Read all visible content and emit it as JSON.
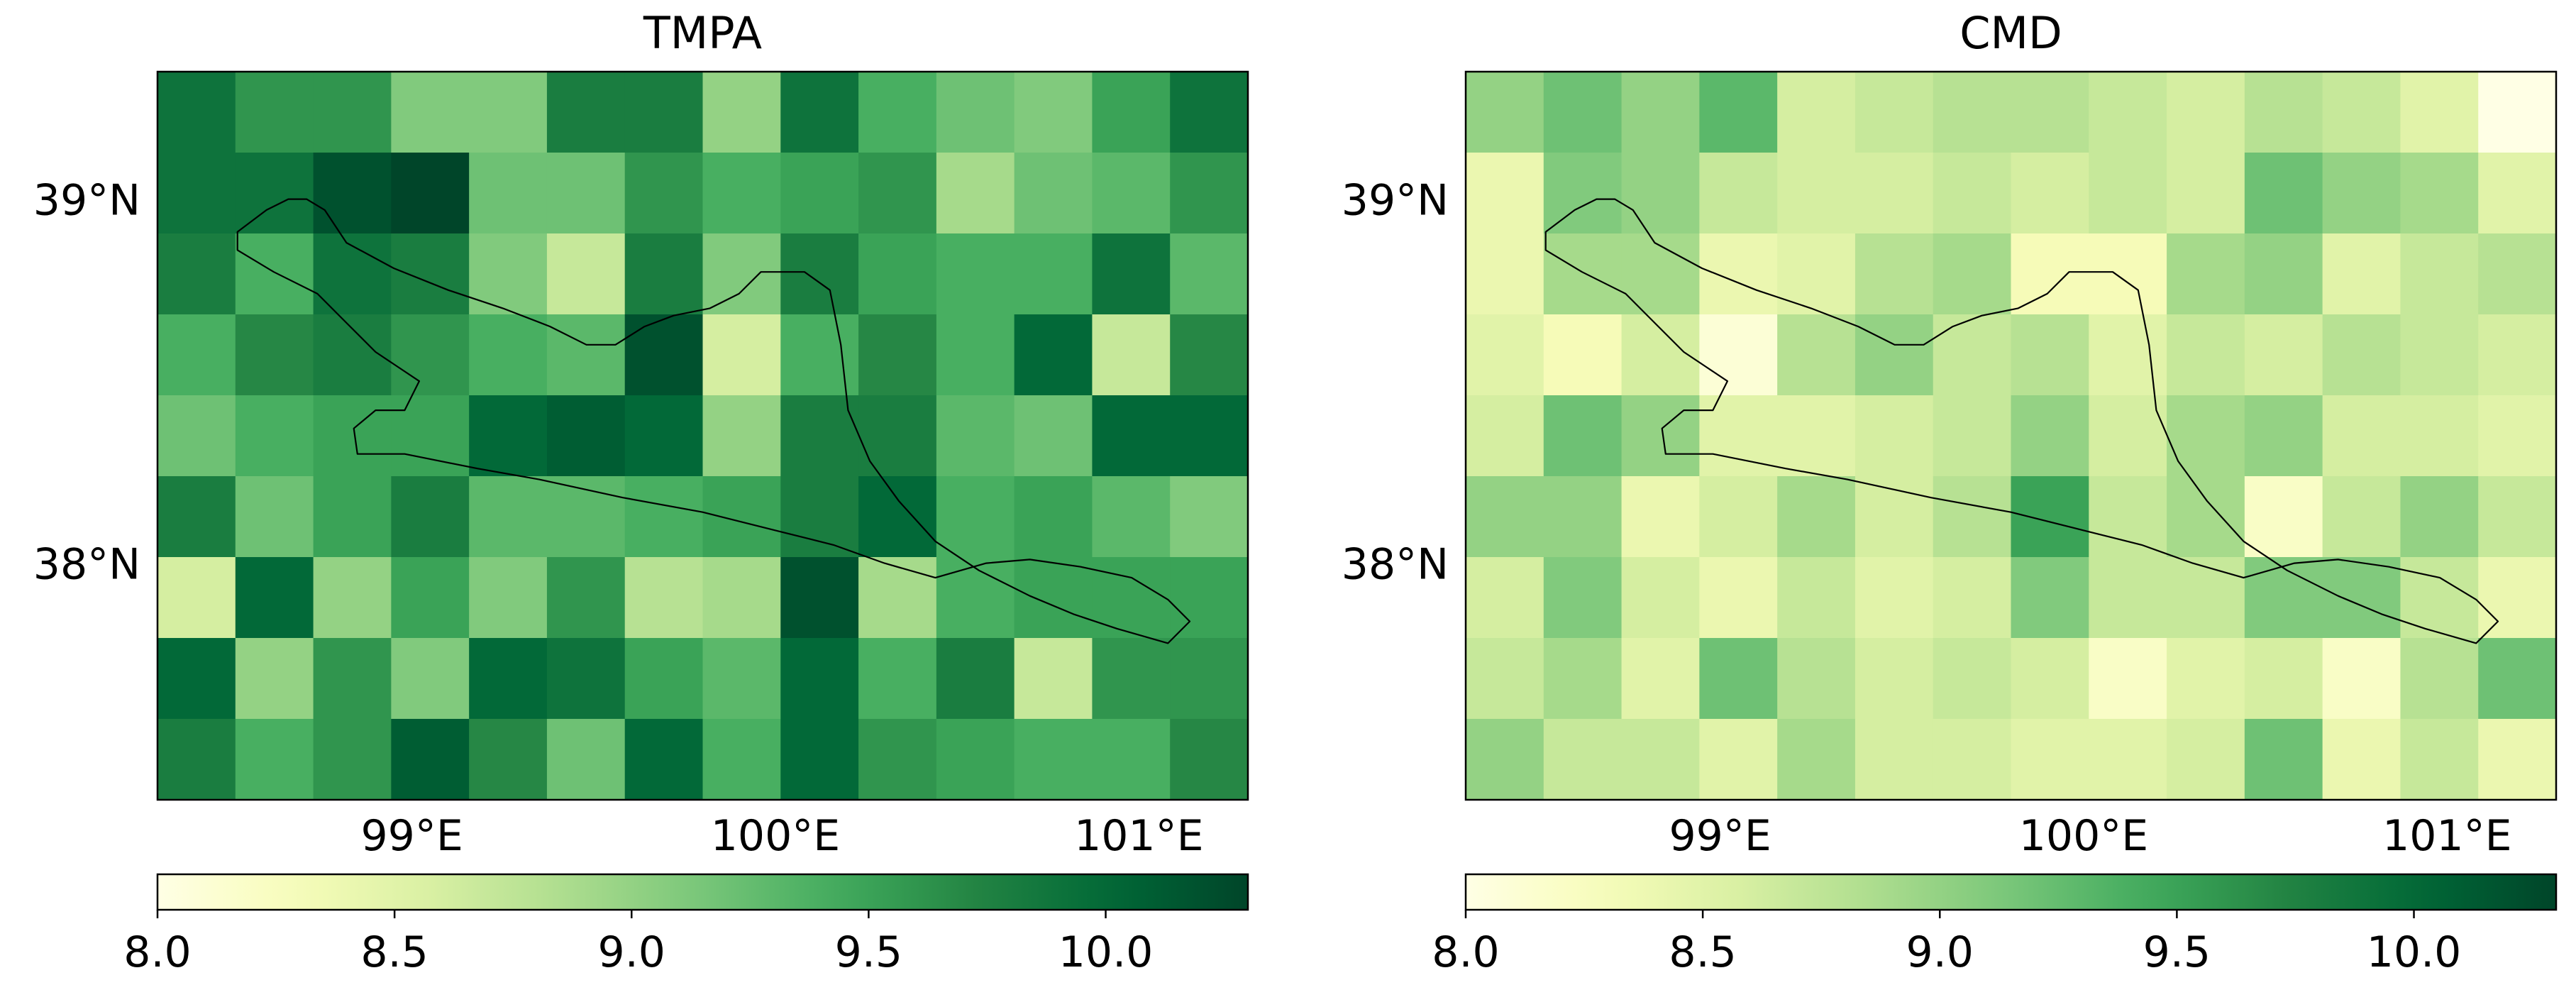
{
  "chart_data": [
    {
      "type": "heatmap",
      "title": "TMPA",
      "xlabel": "",
      "ylabel": "",
      "x_ticks": [
        "99°E",
        "100°E",
        "101°E"
      ],
      "y_ticks": [
        "39°N",
        "38°N"
      ],
      "colorbar": {
        "ticks": [
          "8.0",
          "8.5",
          "9.0",
          "9.5",
          "10.0"
        ],
        "min": 8.0,
        "max": 10.3
      },
      "colormap": "YlGn",
      "grid": [
        [
          9.9,
          9.6,
          9.6,
          9.1,
          9.1,
          9.8,
          9.8,
          9.0,
          9.9,
          9.4,
          9.2,
          9.1,
          9.5,
          9.9
        ],
        [
          9.9,
          9.9,
          10.2,
          10.3,
          9.2,
          9.2,
          9.6,
          9.4,
          9.5,
          9.6,
          8.9,
          9.2,
          9.3,
          9.6
        ],
        [
          9.8,
          9.4,
          9.9,
          9.8,
          9.1,
          8.7,
          9.8,
          9.1,
          9.8,
          9.5,
          9.4,
          9.4,
          9.9,
          9.3
        ],
        [
          9.4,
          9.7,
          9.8,
          9.6,
          9.4,
          9.3,
          10.2,
          8.6,
          9.4,
          9.7,
          9.4,
          10.0,
          8.7,
          9.7
        ],
        [
          9.2,
          9.4,
          9.5,
          9.5,
          10.0,
          10.1,
          10.0,
          9.0,
          9.8,
          9.8,
          9.3,
          9.2,
          10.0,
          10.0
        ],
        [
          9.8,
          9.2,
          9.5,
          9.8,
          9.3,
          9.3,
          9.4,
          9.5,
          9.8,
          10.0,
          9.4,
          9.5,
          9.3,
          9.1
        ],
        [
          8.6,
          10.0,
          9.0,
          9.5,
          9.1,
          9.6,
          8.8,
          8.9,
          10.2,
          8.9,
          9.4,
          9.5,
          9.5,
          9.5
        ],
        [
          10.0,
          9.0,
          9.6,
          9.1,
          10.0,
          9.9,
          9.5,
          9.3,
          10.0,
          9.4,
          9.8,
          8.7,
          9.6,
          9.6
        ],
        [
          9.8,
          9.4,
          9.6,
          10.1,
          9.7,
          9.2,
          10.0,
          9.4,
          10.0,
          9.6,
          9.5,
          9.4,
          9.4,
          9.7
        ]
      ]
    },
    {
      "type": "heatmap",
      "title": "CMD",
      "xlabel": "",
      "ylabel": "",
      "x_ticks": [
        "99°E",
        "100°E",
        "101°E"
      ],
      "y_ticks": [
        "39°N",
        "38°N"
      ],
      "colorbar": {
        "ticks": [
          "8.0",
          "8.5",
          "9.0",
          "9.5",
          "10.0"
        ],
        "min": 8.0,
        "max": 10.3
      },
      "colormap": "YlGn",
      "grid": [
        [
          9.0,
          9.2,
          9.0,
          9.3,
          8.6,
          8.7,
          8.8,
          8.8,
          8.7,
          8.6,
          8.8,
          8.7,
          8.5,
          8.0
        ],
        [
          8.4,
          9.1,
          9.0,
          8.7,
          8.6,
          8.6,
          8.7,
          8.6,
          8.7,
          8.6,
          9.2,
          9.0,
          8.9,
          8.5
        ],
        [
          8.4,
          8.9,
          8.9,
          8.4,
          8.5,
          8.8,
          8.9,
          8.3,
          8.3,
          8.9,
          9.0,
          8.5,
          8.7,
          8.8
        ],
        [
          8.5,
          8.3,
          8.6,
          8.1,
          8.8,
          9.0,
          8.7,
          8.8,
          8.5,
          8.7,
          8.6,
          8.8,
          8.7,
          8.6
        ],
        [
          8.6,
          9.2,
          9.0,
          8.5,
          8.5,
          8.6,
          8.7,
          9.0,
          8.6,
          8.9,
          9.0,
          8.6,
          8.6,
          8.5
        ],
        [
          9.0,
          9.0,
          8.4,
          8.6,
          8.9,
          8.6,
          8.8,
          9.5,
          8.7,
          8.9,
          8.2,
          8.7,
          9.0,
          8.7
        ],
        [
          8.6,
          9.1,
          8.6,
          8.4,
          8.7,
          8.5,
          8.6,
          9.1,
          8.7,
          8.7,
          9.1,
          9.1,
          8.7,
          8.4
        ],
        [
          8.7,
          8.9,
          8.5,
          9.2,
          8.8,
          8.6,
          8.7,
          8.6,
          8.2,
          8.5,
          8.6,
          8.2,
          8.8,
          9.2
        ],
        [
          9.0,
          8.7,
          8.7,
          8.5,
          8.9,
          8.6,
          8.6,
          8.5,
          8.5,
          8.6,
          9.2,
          8.4,
          8.7,
          8.4
        ]
      ]
    }
  ]
}
